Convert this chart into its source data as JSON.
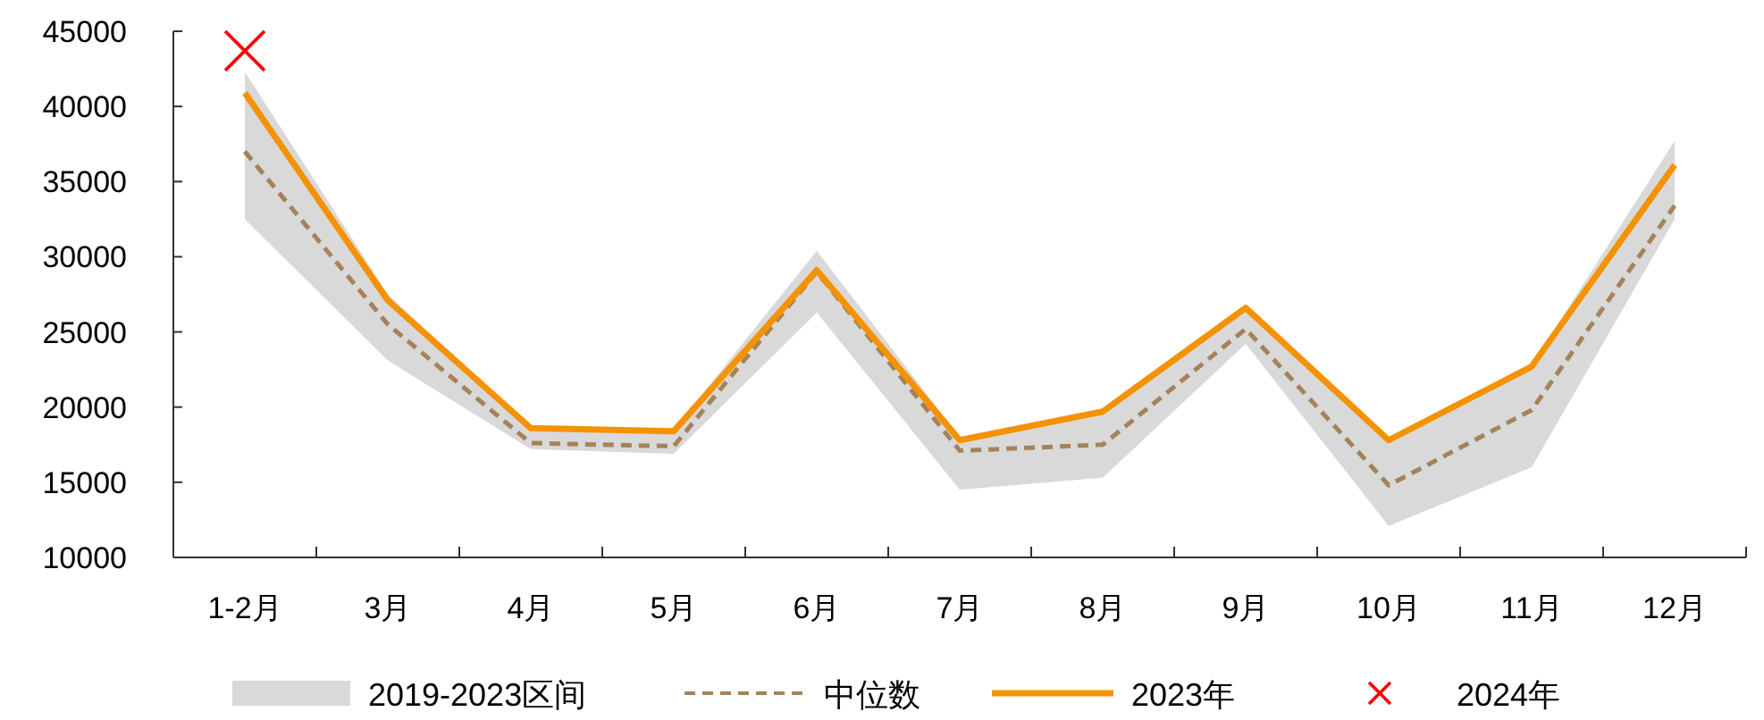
{
  "chart_data": {
    "type": "line",
    "categories": [
      "1-2月",
      "3月",
      "4月",
      "5月",
      "6月",
      "7月",
      "8月",
      "9月",
      "10月",
      "11月",
      "12月"
    ],
    "ylim": [
      10000,
      45000
    ],
    "yticks": [
      10000,
      15000,
      20000,
      25000,
      30000,
      35000,
      40000,
      45000
    ],
    "grid": false,
    "legend": "bottom",
    "series": [
      {
        "name": "2019-2023区间",
        "type": "area",
        "color": "#d9d9d9",
        "values": [
          null,
          null,
          null,
          null,
          null,
          null,
          null,
          null,
          null,
          null,
          null
        ]
      },
      {
        "name": "中位数",
        "type": "line",
        "color": "#a5835a",
        "line_style": "dashed",
        "marker": "none",
        "values": [
          37000,
          25500,
          17600,
          17400,
          29000,
          17100,
          17500,
          25200,
          14800,
          19800,
          33400
        ],
        "lower": [
          32500,
          23100,
          17200,
          16900,
          26300,
          14500,
          15300,
          24200,
          12100,
          16000,
          32500
        ],
        "upper": [
          42300,
          27500,
          18700,
          18500,
          30400,
          18000,
          19800,
          26700,
          17900,
          22800,
          37700
        ]
      },
      {
        "name": "2023年",
        "type": "line",
        "color": "#f59200",
        "line_style": "solid",
        "marker": "none",
        "values": [
          40900,
          27100,
          18600,
          18400,
          29100,
          17800,
          19700,
          26600,
          17800,
          22700,
          36100
        ]
      },
      {
        "name": "2024年",
        "type": "scatter",
        "color": "#ff0000",
        "marker": "cross",
        "values": [
          43700,
          null,
          null,
          null,
          null,
          null,
          null,
          null,
          null,
          null,
          null
        ]
      }
    ]
  }
}
